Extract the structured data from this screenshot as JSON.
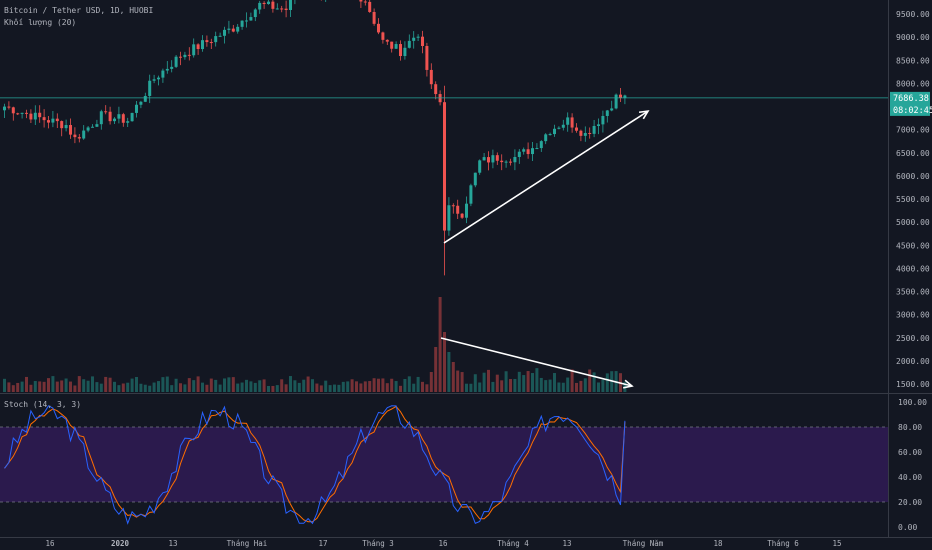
{
  "header": {
    "symbol_line": "Bitcoin / Tether USD, 1D, HUOBI",
    "volume_line": "Khối lượng (20)"
  },
  "stoch_panel": {
    "label": "Stoch (14, 3, 3)"
  },
  "price_badge": {
    "price": "7686.38",
    "countdown": "08:02:45"
  },
  "colors": {
    "background": "#131722",
    "up": "#26a69a",
    "down": "#ef5350",
    "stoch_fill": "#2b1a4d",
    "stoch_k": "#2962ff",
    "stoch_d": "#ff6d00",
    "price_line": "#26a69a",
    "trend_arrow": "#ffffff"
  },
  "chart_data": [
    {
      "type": "candlestick",
      "title": "Bitcoin / Tether USD, 1D, HUOBI",
      "y_ticks": [
        "9500.00",
        "9000.00",
        "8500.00",
        "8000.00",
        "7500.00",
        "7000.00",
        "6500.00",
        "6000.00",
        "5500.00",
        "5000.00",
        "4500.00",
        "4000.00",
        "3500.00",
        "3000.00",
        "2500.00",
        "2000.00",
        "1500.00"
      ],
      "x_ticks": [
        "16",
        "2020",
        "13",
        "Tháng Hai",
        "17",
        "Tháng 3",
        "16",
        "Tháng 4",
        "13",
        "Tháng Năm",
        "18",
        "Tháng 6",
        "15"
      ],
      "current_price": 7686.38,
      "key_points": [
        {
          "x": "2019-12-16",
          "y": 7050
        },
        {
          "x": "2020-02-13",
          "y": 10300
        },
        {
          "x": "2020-03-12",
          "y": 4900
        },
        {
          "x": "2020-03-13",
          "y": 3850
        },
        {
          "x": "2020-04-29",
          "y": 8600
        },
        {
          "x": "2020-05-02",
          "y": 7686.38
        }
      ],
      "annotations": [
        {
          "type": "arrow",
          "from": {
            "x": "2020-03-14",
            "y": 4550
          },
          "to": {
            "x": "2020-05-02",
            "y": 7400
          },
          "direction": "up"
        }
      ]
    },
    {
      "type": "bar",
      "title": "Khối lượng (20)",
      "note": "volume spike on 2020-03-12/13",
      "annotations": [
        {
          "type": "arrow",
          "direction": "down",
          "from": "2020-03-13",
          "to": "2020-05-02"
        }
      ]
    },
    {
      "type": "line",
      "title": "Stoch (14, 3, 3)",
      "y_ticks": [
        "100.00",
        "80.00",
        "60.00",
        "40.00",
        "20.00",
        "0.00"
      ],
      "ylim": [
        0,
        100
      ],
      "bands": [
        20,
        80
      ],
      "series": [
        {
          "name": "%K"
        },
        {
          "name": "%D"
        }
      ],
      "last_value": 85
    }
  ]
}
